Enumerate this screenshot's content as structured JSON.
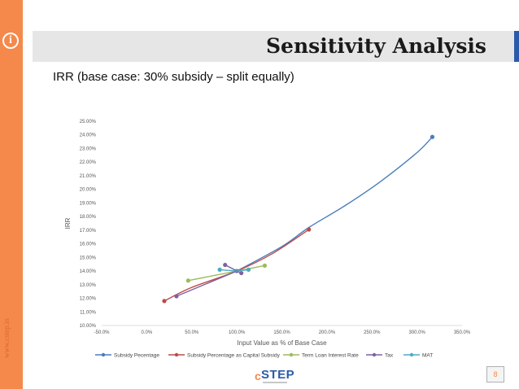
{
  "slide": {
    "title": "Sensitivity Analysis",
    "subtitle": "IRR (base case: 30% subsidy – split equally)",
    "side_url": "www.cstep.in",
    "page_number": "8",
    "logo_c": "c",
    "logo_text": "STEP",
    "info_glyph": "i"
  },
  "chart_data": {
    "type": "line",
    "title": "",
    "xlabel": "Input Value as % of Base Case",
    "ylabel": "IRR",
    "xlim": [
      -50,
      350
    ],
    "ylim": [
      10,
      25
    ],
    "x_ticks": [
      "-50.0%",
      "0.0%",
      "50.0%",
      "100.0%",
      "150.0%",
      "200.0%",
      "250.0%",
      "300.0%",
      "350.0%"
    ],
    "y_ticks": [
      "10.00%",
      "11.00%",
      "12.00%",
      "13.00%",
      "14.00%",
      "15.00%",
      "16.00%",
      "17.00%",
      "18.00%",
      "19.00%",
      "20.00%",
      "21.00%",
      "22.00%",
      "23.00%",
      "24.00%",
      "25.00%"
    ],
    "legend_position": "bottom",
    "series": [
      {
        "name": "Subsidy Pecentage",
        "color": "#4a7ebb",
        "curve": true,
        "x": [
          100,
          150,
          180,
          220,
          260,
          300,
          317
        ],
        "y": [
          14.0,
          15.8,
          17.2,
          18.8,
          20.6,
          22.7,
          23.85
        ],
        "markers": [
          [
            100,
            14.0
          ],
          [
            317,
            23.85
          ]
        ]
      },
      {
        "name": "Subsidy Percentage as Capital Subsidy",
        "color": "#be4b48",
        "curve": true,
        "x": [
          19.5,
          50,
          100,
          140,
          180
        ],
        "y": [
          11.8,
          12.8,
          14.0,
          15.3,
          17.05
        ],
        "markers": [
          [
            19.5,
            11.8
          ],
          [
            180,
            17.05
          ]
        ]
      },
      {
        "name": "Term Loan Interest Rate",
        "color": "#9bbb59",
        "curve": false,
        "x": [
          46,
          100,
          131
        ],
        "y": [
          13.3,
          14.0,
          14.4
        ],
        "markers": [
          [
            46,
            13.3
          ],
          [
            131,
            14.4
          ]
        ]
      },
      {
        "name": "Tax",
        "color": "#7e62a1",
        "curve": false,
        "x": [
          33,
          100,
          87,
          105
        ],
        "y": [
          12.15,
          14.0,
          14.45,
          13.85
        ],
        "markers": [
          [
            33,
            12.15
          ],
          [
            87,
            14.45
          ],
          [
            105,
            13.85
          ]
        ]
      },
      {
        "name": "MAT",
        "color": "#4bacc6",
        "curve": false,
        "x": [
          81,
          100,
          113
        ],
        "y": [
          14.1,
          14.0,
          14.1
        ],
        "markers": [
          [
            81,
            14.1
          ],
          [
            113,
            14.1
          ]
        ]
      }
    ]
  }
}
